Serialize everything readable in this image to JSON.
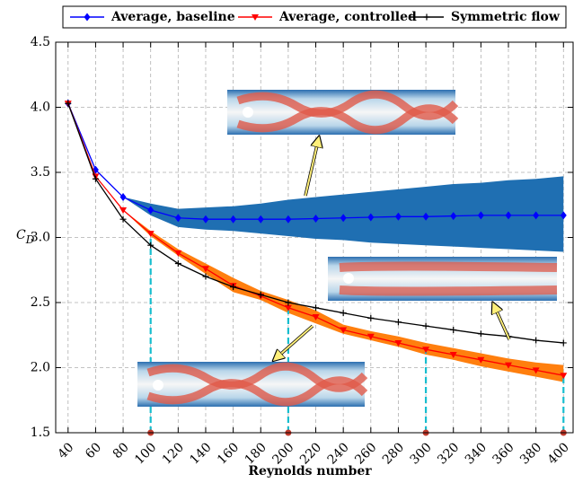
{
  "chart_data": {
    "type": "line",
    "xlabel": "Reynolds number",
    "ylabel": "C",
    "ylabel_sub": "D",
    "x": [
      40,
      60,
      80,
      100,
      120,
      140,
      160,
      180,
      200,
      220,
      240,
      260,
      280,
      300,
      320,
      340,
      360,
      380,
      400
    ],
    "series": [
      {
        "name": "Average, baseline",
        "color": "#0000ff",
        "marker": "diamond",
        "values": [
          4.03,
          3.52,
          3.31,
          3.21,
          3.15,
          3.14,
          3.14,
          3.14,
          3.14,
          3.145,
          3.15,
          3.155,
          3.16,
          3.16,
          3.165,
          3.17,
          3.17,
          3.17,
          3.17
        ],
        "band_upper": [
          4.03,
          3.52,
          3.31,
          3.26,
          3.22,
          3.23,
          3.24,
          3.26,
          3.29,
          3.31,
          3.33,
          3.35,
          3.37,
          3.39,
          3.41,
          3.42,
          3.44,
          3.45,
          3.47
        ],
        "band_lower": [
          4.03,
          3.52,
          3.31,
          3.17,
          3.08,
          3.06,
          3.05,
          3.03,
          3.01,
          2.99,
          2.98,
          2.96,
          2.95,
          2.94,
          2.93,
          2.92,
          2.91,
          2.9,
          2.89
        ],
        "band_color": "#1f6fb2"
      },
      {
        "name": "Average, controlled",
        "color": "#ff0000",
        "marker": "triangle-down",
        "values": [
          4.03,
          3.47,
          3.21,
          3.03,
          2.88,
          2.76,
          2.63,
          2.55,
          2.46,
          2.39,
          2.29,
          2.24,
          2.19,
          2.14,
          2.1,
          2.06,
          2.02,
          1.98,
          1.94
        ],
        "band_upper": [
          4.03,
          3.47,
          3.21,
          3.05,
          2.91,
          2.8,
          2.69,
          2.59,
          2.52,
          2.44,
          2.33,
          2.28,
          2.24,
          2.19,
          2.15,
          2.11,
          2.07,
          2.04,
          2.02
        ],
        "band_lower": [
          4.03,
          3.47,
          3.21,
          3.01,
          2.86,
          2.72,
          2.58,
          2.52,
          2.42,
          2.34,
          2.26,
          2.21,
          2.16,
          2.1,
          2.06,
          2.01,
          1.97,
          1.93,
          1.89
        ],
        "band_color": "#ff7f0e"
      },
      {
        "name": "Symmetric flow",
        "color": "#000000",
        "marker": "plus",
        "values": [
          4.03,
          3.45,
          3.14,
          2.94,
          2.8,
          2.7,
          2.62,
          2.56,
          2.5,
          2.46,
          2.42,
          2.38,
          2.35,
          2.32,
          2.29,
          2.26,
          2.24,
          2.21,
          2.19
        ]
      }
    ],
    "highlight_x": [
      100,
      200,
      300,
      400
    ],
    "highlight_color": "#17becf",
    "xlim": [
      31,
      407
    ],
    "ylim": [
      1.5,
      4.5
    ],
    "xticks": [
      40,
      60,
      80,
      100,
      120,
      140,
      160,
      180,
      200,
      220,
      240,
      260,
      280,
      300,
      320,
      340,
      360,
      380,
      400
    ],
    "yticks": [
      1.5,
      {
        "value": 2,
        "label": "2.0"
      },
      2.5,
      {
        "value": 3,
        "label": "3.0"
      },
      3.5,
      {
        "value": 4,
        "label": "4.0"
      },
      4.5
    ],
    "grid": true,
    "legend": "top"
  }
}
